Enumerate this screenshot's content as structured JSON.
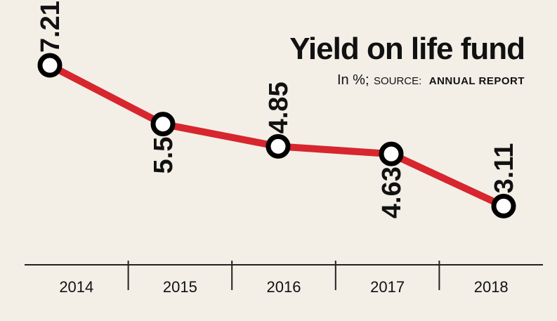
{
  "chart_data": {
    "type": "line",
    "title": "Yield on life fund",
    "subtitle_unit": "In %;",
    "subtitle_source_label": "SOURCE:",
    "subtitle_source": "ANNUAL REPORT",
    "categories": [
      "2014",
      "2015",
      "2016",
      "2017",
      "2018"
    ],
    "values": [
      7.21,
      5.5,
      4.85,
      4.63,
      3.11
    ],
    "value_labels": [
      "7.21",
      "5.5",
      "4.85",
      "4.63",
      "3.11"
    ],
    "ylim": [
      1.4,
      8.5
    ],
    "grid": false,
    "line_color": "#d7262e",
    "marker_stroke_color": "#000000",
    "marker_fill_color": "#ffffff"
  }
}
